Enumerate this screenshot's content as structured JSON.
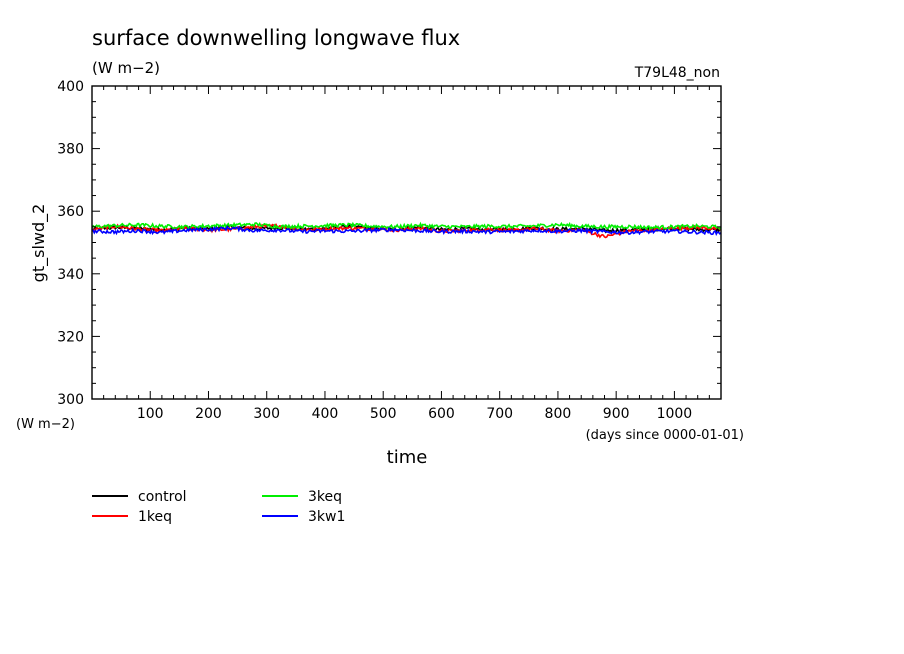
{
  "chart_data": {
    "type": "line",
    "title": "surface downwelling longwave flux",
    "subtitle": "(W m−2)",
    "run_label": "T79L48_non",
    "ylabel": "gt_slwd_2",
    "y_unit": "(W m−2)",
    "xlabel": "time",
    "x_unit": "(days since 0000-01-01)",
    "xlim": [
      0,
      1080
    ],
    "ylim": [
      300,
      400
    ],
    "x_ticks": [
      100,
      200,
      300,
      400,
      500,
      600,
      700,
      800,
      900,
      1000
    ],
    "x_tick_labels": [
      "100",
      "200",
      "300",
      "400",
      "500",
      "600",
      "700",
      "800",
      "900",
      "1000"
    ],
    "y_ticks": [
      300,
      320,
      340,
      360,
      380,
      400
    ],
    "y_tick_labels": [
      "300",
      "320",
      "340",
      "360",
      "380",
      "400"
    ],
    "grid": false,
    "legend_position": "bottom-left",
    "series": [
      {
        "name": "control",
        "color": "#000000",
        "x": [
          0,
          40,
          80,
          120,
          160,
          200,
          240,
          280,
          320,
          360,
          400,
          440,
          480,
          520,
          560,
          600,
          640,
          680,
          720,
          760,
          800,
          840,
          880,
          920,
          960,
          1000,
          1040,
          1080
        ],
        "y": [
          354.2,
          354.8,
          354.5,
          354.1,
          354.6,
          354.3,
          355.0,
          354.4,
          354.7,
          354.2,
          354.5,
          355.2,
          354.6,
          354.3,
          354.8,
          354.1,
          354.4,
          354.0,
          354.3,
          354.6,
          354.2,
          354.5,
          353.8,
          354.0,
          354.3,
          354.6,
          354.2,
          354.0
        ]
      },
      {
        "name": "1keq",
        "color": "#ff0000",
        "x": [
          0,
          40,
          80,
          120,
          160,
          200,
          240,
          280,
          320,
          360,
          400,
          440,
          480,
          520,
          560,
          600,
          640,
          680,
          720,
          760,
          800,
          840,
          880,
          920,
          960,
          1000,
          1040,
          1080
        ],
        "y": [
          354.0,
          355.2,
          354.3,
          353.8,
          354.5,
          354.0,
          354.2,
          355.0,
          355.4,
          354.1,
          354.3,
          354.6,
          354.4,
          354.0,
          354.5,
          353.6,
          353.9,
          354.2,
          353.8,
          354.4,
          353.7,
          354.1,
          351.8,
          353.6,
          354.0,
          354.5,
          354.9,
          354.2
        ]
      },
      {
        "name": "3keq",
        "color": "#00ee00",
        "x": [
          0,
          40,
          80,
          120,
          160,
          200,
          240,
          280,
          320,
          360,
          400,
          440,
          480,
          520,
          560,
          600,
          640,
          680,
          720,
          760,
          800,
          840,
          880,
          920,
          960,
          1000,
          1040,
          1080
        ],
        "y": [
          355.0,
          355.4,
          355.6,
          355.2,
          355.0,
          355.3,
          355.5,
          355.8,
          355.1,
          355.2,
          355.4,
          355.6,
          355.2,
          355.0,
          355.5,
          355.1,
          355.0,
          355.2,
          355.1,
          355.3,
          355.7,
          355.2,
          355.0,
          355.1,
          354.8,
          355.0,
          355.2,
          354.9
        ]
      },
      {
        "name": "3kw1",
        "color": "#0000ff",
        "x": [
          0,
          40,
          80,
          120,
          160,
          200,
          240,
          280,
          320,
          360,
          400,
          440,
          480,
          520,
          560,
          600,
          640,
          680,
          720,
          760,
          800,
          840,
          880,
          920,
          960,
          1000,
          1040,
          1080
        ],
        "y": [
          353.6,
          353.4,
          353.8,
          353.2,
          353.9,
          354.2,
          354.6,
          353.8,
          354.0,
          353.5,
          353.7,
          353.6,
          353.9,
          354.1,
          353.8,
          353.5,
          353.6,
          353.4,
          353.5,
          353.9,
          353.6,
          353.8,
          353.4,
          353.2,
          353.5,
          353.6,
          353.3,
          353.1
        ]
      }
    ]
  }
}
